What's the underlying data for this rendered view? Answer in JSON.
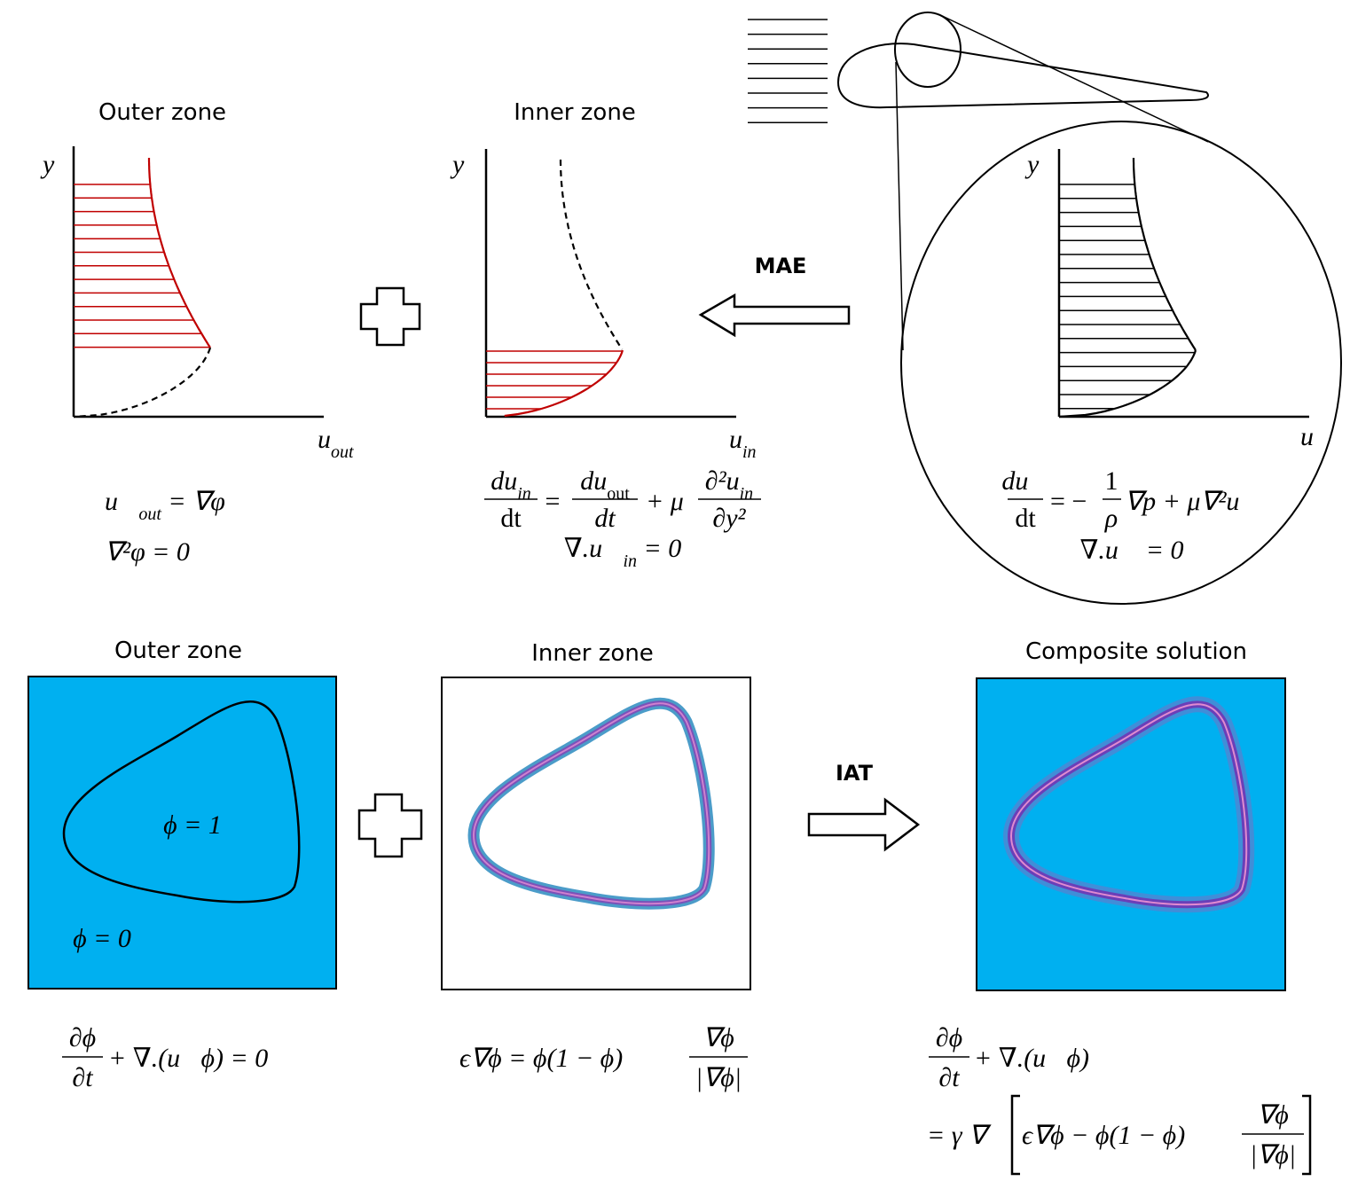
{
  "top": {
    "outer": {
      "title": "Outer zone",
      "y_label": "y",
      "x_label": {
        "base": "u",
        "sub": "out"
      },
      "eq1": {
        "vec": "u⃗",
        "sub": "out",
        "rest": " = ∇φ"
      },
      "eq2": "∇²φ = 0"
    },
    "inner": {
      "title": "Inner zone",
      "y_label": "y",
      "x_label": {
        "base": "u",
        "sub": "in"
      },
      "eq1": {
        "lhs_num": "du",
        "lhs_num_sub": "in",
        "lhs_den": "dt",
        "eq": "=",
        "mid_num": "du",
        "mid_num_sub": "out",
        "mid_den": "dt",
        "plus": "+ μ",
        "rhs_num": "∂²u",
        "rhs_num_sub": "in",
        "rhs_den": "∂y²"
      },
      "eq2": {
        "pre": "∇.u⃗",
        "sub": "in",
        "post": " = 0"
      }
    },
    "mae": "MAE",
    "full": {
      "y_label": "y",
      "x_label": "u",
      "eq1": {
        "lhs_num": "du⃗",
        "lhs_den": "dt",
        "eq": "= −",
        "frac_num": "1",
        "frac_den": "ρ",
        "rest": "∇p + μ∇²u⃗"
      },
      "eq2": "∇.u⃗ = 0"
    }
  },
  "bottom": {
    "outer": {
      "title": "Outer zone",
      "inside": "ϕ = 1",
      "outside": "ϕ = 0",
      "eq": {
        "num": "∂ϕ",
        "den": "∂t",
        "rest": "+ ∇.(u⃗ϕ) = 0"
      }
    },
    "inner": {
      "title": "Inner zone",
      "eq": {
        "lhs": "ϵ∇ϕ = ϕ(1 − ϕ)",
        "num": "∇ϕ",
        "den": "|∇ϕ|"
      }
    },
    "iat": "IAT",
    "composite": {
      "title": "Composite solution",
      "eq": {
        "num": "∂ϕ",
        "den": "∂t",
        "rest": "+ ∇.(u⃗ϕ)",
        "line2_pre": "= γ ∇",
        "line2_inner": "ϵ∇ϕ − ϕ(1 − ϕ)",
        "num2": "∇ϕ",
        "den2": "|∇ϕ|"
      }
    }
  }
}
